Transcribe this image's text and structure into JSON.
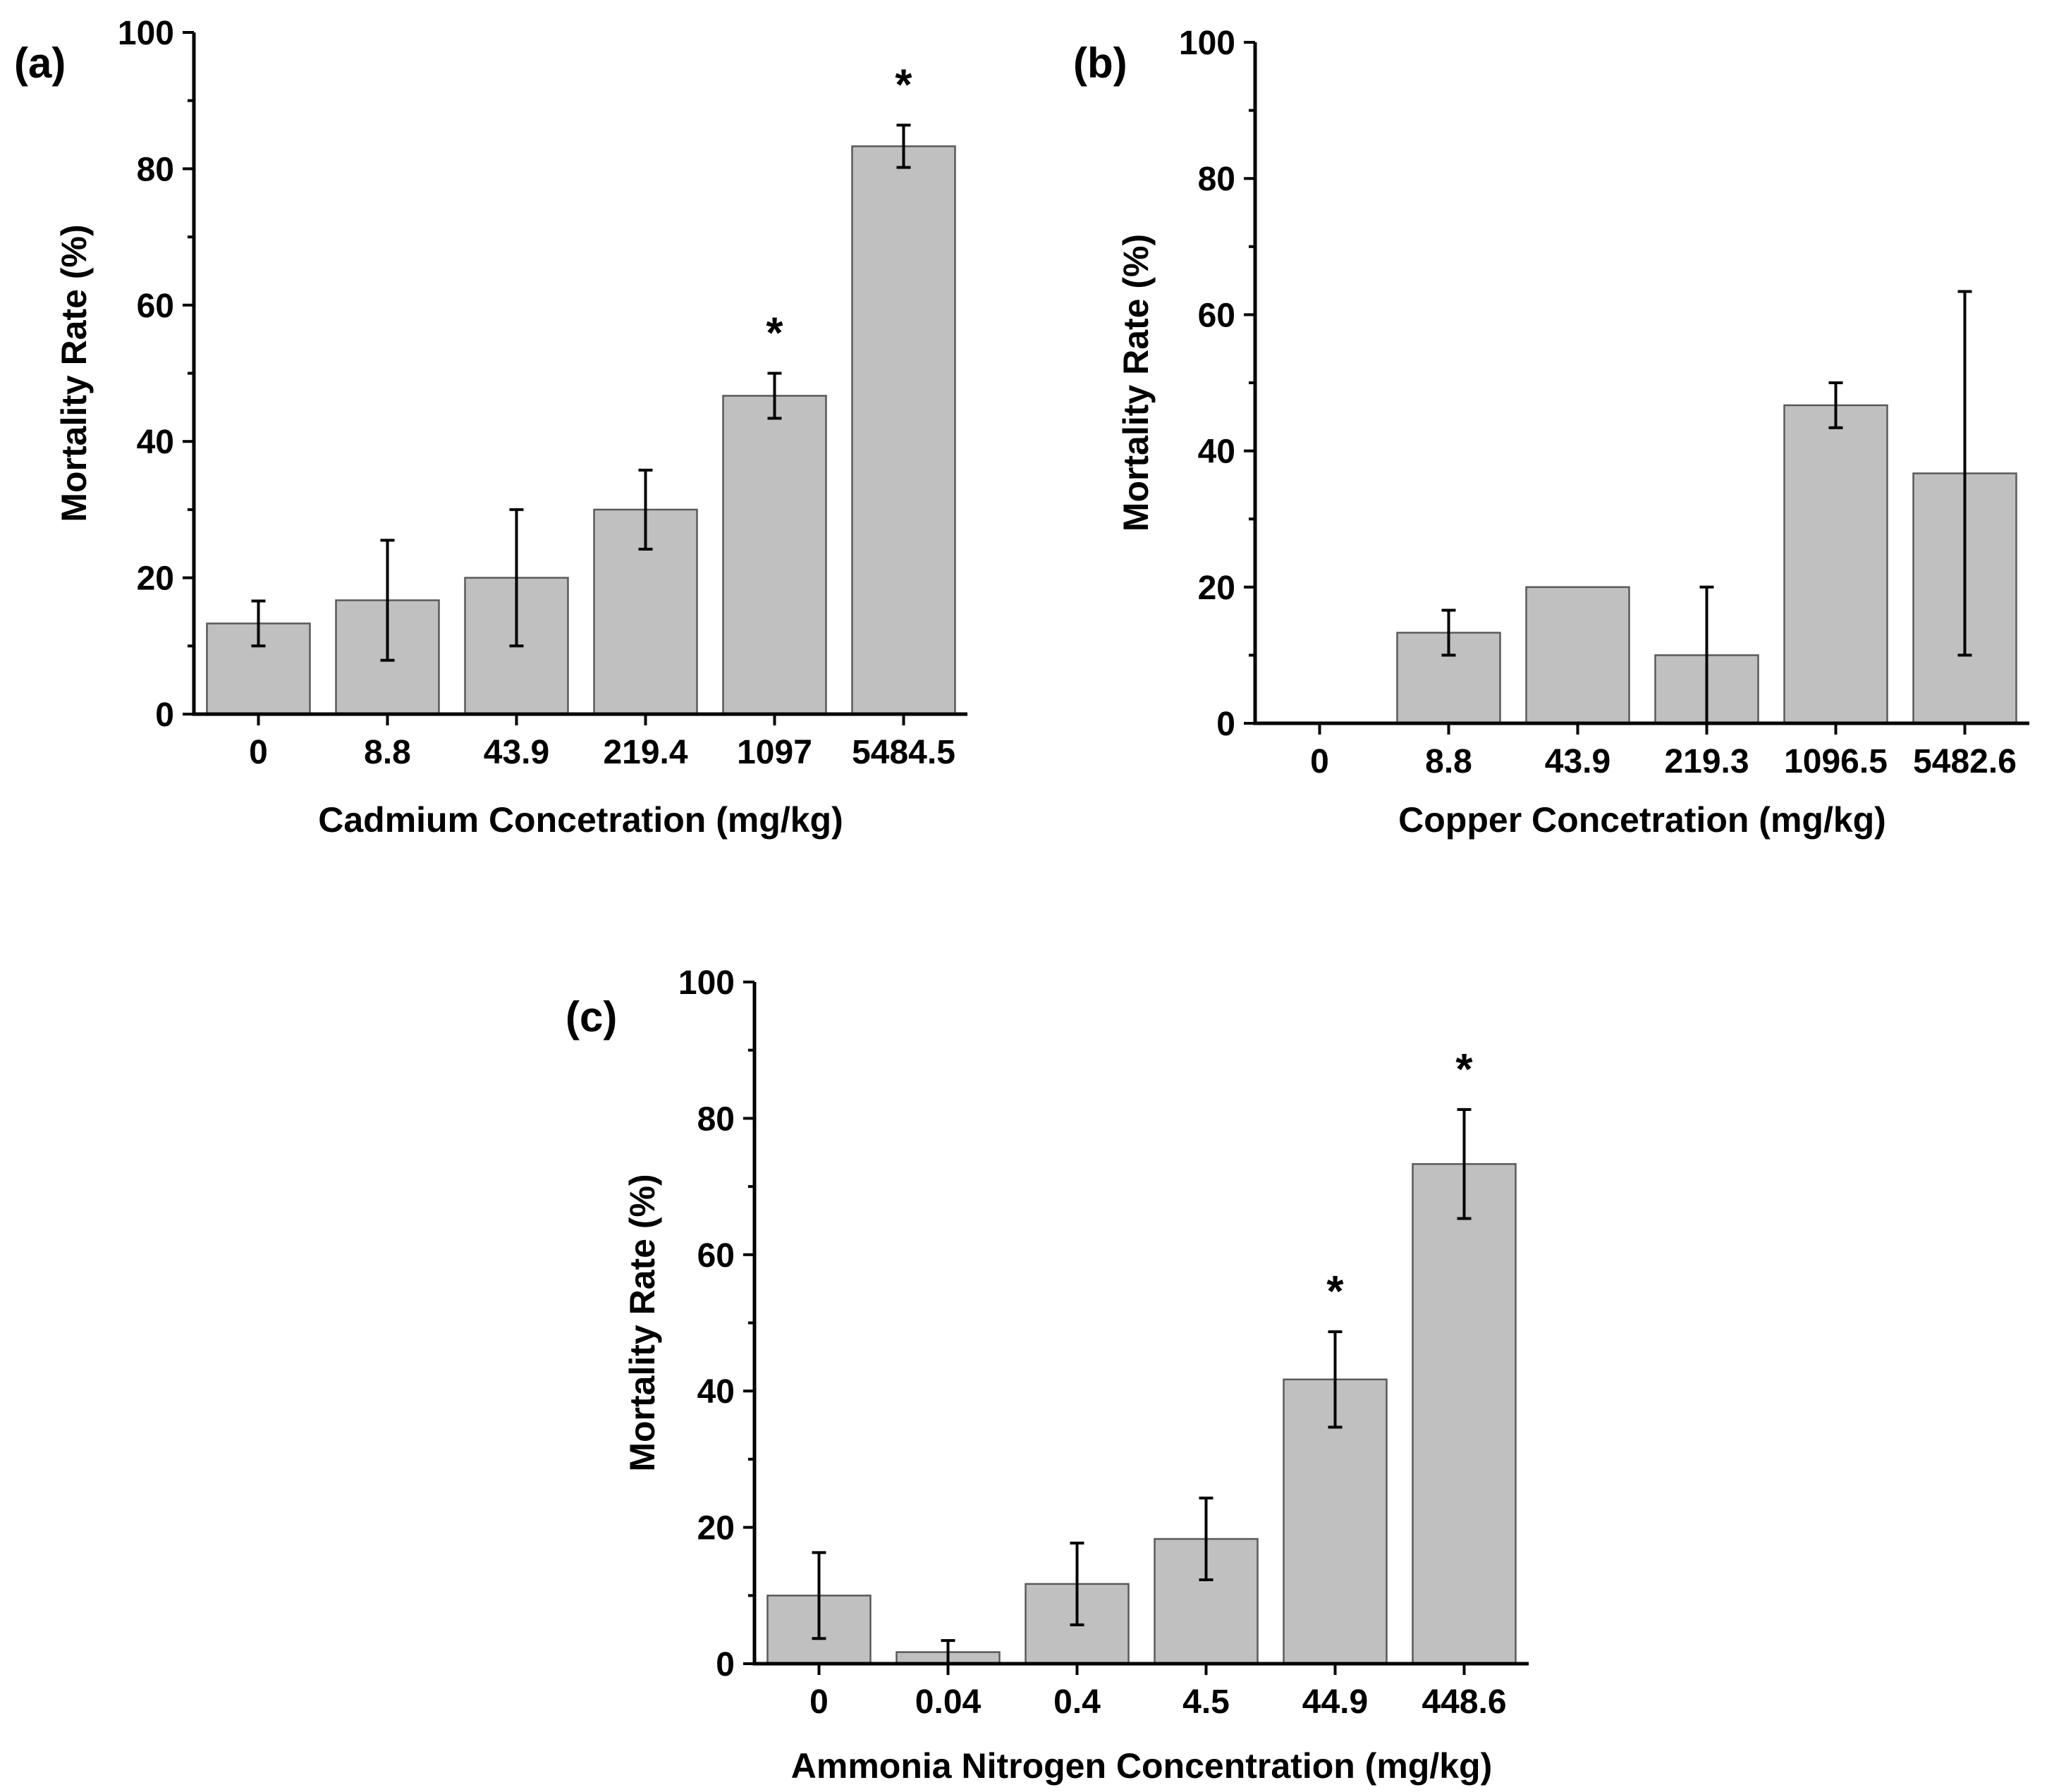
{
  "chart_data": [
    {
      "type": "bar",
      "panel_label": "(a)",
      "categories": [
        "0",
        "8.8",
        "43.9",
        "219.4",
        "1097",
        "5484.5"
      ],
      "values": [
        13.3,
        16.7,
        20.0,
        30.0,
        46.7,
        83.3
      ],
      "error": [
        3.3,
        8.8,
        10.0,
        5.8,
        3.3,
        3.1
      ],
      "significant": [
        false,
        false,
        false,
        false,
        true,
        true
      ],
      "significance_marker": "*",
      "xlabel": "Cadmium Concetration (mg/kg)",
      "ylabel": "Mortality Rate (%)",
      "ylim": [
        0,
        100
      ],
      "yticks": [
        "0",
        "20",
        "40",
        "60",
        "80",
        "100"
      ],
      "bar_color": "#c0c0c0"
    },
    {
      "type": "bar",
      "panel_label": "(b)",
      "categories": [
        "0",
        "8.8",
        "43.9",
        "219.3",
        "1096.5",
        "5482.6"
      ],
      "values": [
        0,
        13.3,
        20.0,
        10.0,
        46.7,
        36.7
      ],
      "error": [
        0,
        3.3,
        0,
        10.0,
        3.3,
        26.7
      ],
      "significant": [
        false,
        false,
        false,
        false,
        false,
        false
      ],
      "significance_marker": "*",
      "xlabel": "Copper Concetration (mg/kg)",
      "ylabel": "Mortality Rate (%)",
      "ylim": [
        0,
        100
      ],
      "yticks": [
        "0",
        "20",
        "40",
        "60",
        "80",
        "100"
      ],
      "bar_color": "#c0c0c0"
    },
    {
      "type": "bar",
      "panel_label": "(c)",
      "categories": [
        "0",
        "0.04",
        "0.4",
        "4.5",
        "44.9",
        "448.6"
      ],
      "values": [
        10.0,
        1.7,
        11.7,
        18.3,
        41.7,
        73.3
      ],
      "error": [
        6.3,
        1.7,
        6.0,
        6.0,
        7.0,
        8.0
      ],
      "significant": [
        false,
        false,
        false,
        false,
        true,
        true
      ],
      "significance_marker": "*",
      "xlabel": "Ammonia Nitrogen Concentration (mg/kg)",
      "ylabel": "Mortality Rate (%)",
      "ylim": [
        0,
        100
      ],
      "yticks": [
        "0",
        "20",
        "40",
        "60",
        "80",
        "100"
      ],
      "bar_color": "#c0c0c0"
    }
  ]
}
